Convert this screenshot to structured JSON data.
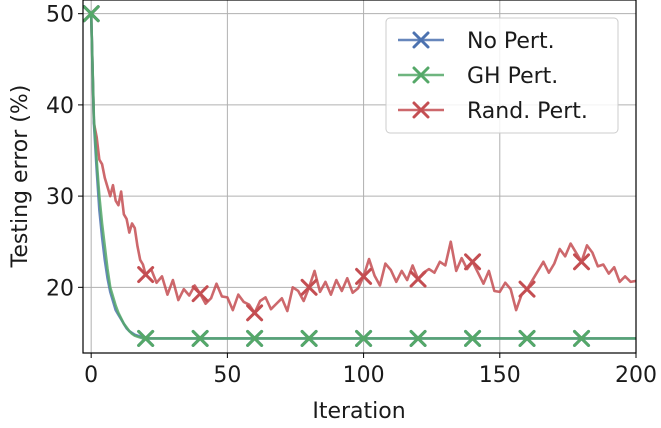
{
  "chart_data": {
    "type": "line",
    "xlabel": "Iteration",
    "ylabel": "Testing error (%)",
    "xlim": [
      -3,
      200
    ],
    "ylim": [
      12.8,
      51.5
    ],
    "xticks": [
      0,
      50,
      100,
      150,
      200
    ],
    "yticks": [
      20,
      30,
      40,
      50
    ],
    "grid": true,
    "legend_position": "top-right",
    "series": [
      {
        "name": "No Pert.",
        "color": "#4c72b0",
        "marker": "x",
        "marker_x": [
          0,
          20,
          40,
          60,
          80,
          100,
          120,
          140,
          160,
          180
        ],
        "x": [
          0,
          1,
          2,
          3,
          4,
          5,
          6,
          7,
          8,
          9,
          10,
          11,
          12,
          13,
          14,
          15,
          16,
          17,
          18,
          19,
          20,
          30,
          40,
          60,
          80,
          100,
          120,
          140,
          160,
          180,
          200
        ],
        "y": [
          50,
          38,
          33,
          28.5,
          25.5,
          23,
          21,
          19.5,
          18.5,
          17.5,
          17,
          16.5,
          16,
          15.5,
          15.2,
          15,
          14.8,
          14.7,
          14.6,
          14.5,
          14.4,
          14.4,
          14.4,
          14.4,
          14.4,
          14.4,
          14.4,
          14.4,
          14.4,
          14.4,
          14.4
        ]
      },
      {
        "name": "GH Pert.",
        "color": "#55a868",
        "marker": "x",
        "marker_x": [
          0,
          20,
          40,
          60,
          80,
          100,
          120,
          140,
          160,
          180
        ],
        "x": [
          0,
          1,
          2,
          3,
          4,
          5,
          6,
          7,
          8,
          9,
          10,
          11,
          12,
          13,
          14,
          15,
          16,
          17,
          18,
          19,
          20,
          30,
          40,
          60,
          80,
          100,
          120,
          140,
          160,
          180,
          200
        ],
        "y": [
          50,
          38.5,
          34,
          30,
          27,
          24.5,
          22,
          20,
          19,
          18,
          17.2,
          16.6,
          16,
          15.6,
          15.2,
          14.9,
          14.7,
          14.6,
          14.5,
          14.4,
          14.4,
          14.4,
          14.4,
          14.4,
          14.4,
          14.4,
          14.4,
          14.4,
          14.4,
          14.4,
          14.4
        ]
      },
      {
        "name": "Rand. Pert.",
        "color": "#c44e52",
        "marker": "x",
        "marker_x": [
          0,
          20,
          40,
          60,
          80,
          100,
          120,
          140,
          160,
          180
        ],
        "x": [
          0,
          1,
          2,
          3,
          4,
          5,
          6,
          7,
          8,
          9,
          10,
          11,
          12,
          13,
          14,
          15,
          16,
          17,
          18,
          19,
          20,
          22,
          24,
          26,
          28,
          30,
          32,
          34,
          36,
          38,
          40,
          42,
          44,
          46,
          48,
          50,
          52,
          54,
          56,
          58,
          60,
          62,
          64,
          66,
          68,
          70,
          72,
          74,
          76,
          78,
          80,
          82,
          84,
          86,
          88,
          90,
          92,
          94,
          96,
          98,
          100,
          102,
          104,
          106,
          108,
          110,
          112,
          114,
          116,
          118,
          120,
          122,
          124,
          126,
          128,
          130,
          132,
          134,
          136,
          138,
          140,
          142,
          144,
          146,
          148,
          150,
          152,
          154,
          156,
          158,
          160,
          162,
          164,
          166,
          168,
          170,
          172,
          174,
          176,
          178,
          180,
          182,
          184,
          186,
          188,
          190,
          192,
          194,
          196,
          198,
          200
        ],
        "y": [
          50,
          38,
          36.5,
          34,
          33.5,
          32,
          31,
          30,
          31.2,
          29.5,
          29,
          30.5,
          28,
          27.5,
          26,
          27,
          26.5,
          24.5,
          23,
          22.5,
          21.4,
          22,
          20.5,
          21.2,
          19.2,
          20.8,
          18.6,
          19.8,
          19.1,
          20.2,
          19.3,
          18.2,
          18.8,
          20.4,
          19,
          18.9,
          17.5,
          19.2,
          18.4,
          18.1,
          17.2,
          18.5,
          18.9,
          17.6,
          18.2,
          18.8,
          17.4,
          20,
          19.6,
          18.5,
          20,
          21.8,
          19.5,
          20.6,
          19.2,
          20.8,
          19.6,
          21,
          19.4,
          19.9,
          21.2,
          23.1,
          21.3,
          20.2,
          22.6,
          21.9,
          20.6,
          21.8,
          20.8,
          22.4,
          20.9,
          21.6,
          22,
          21.6,
          22.8,
          22.4,
          25,
          21.8,
          23.2,
          22,
          22.8,
          21.6,
          20.4,
          21.8,
          19.6,
          19.5,
          20.5,
          19.8,
          17.5,
          19.2,
          19.8,
          20.8,
          21.8,
          22.8,
          21.6,
          22.6,
          24.2,
          23.4,
          24.8,
          23.8,
          22.8,
          24.6,
          23.8,
          22.3,
          22.5,
          21.5,
          22.2,
          20.6,
          21.2,
          20.6,
          20.7
        ]
      }
    ]
  }
}
